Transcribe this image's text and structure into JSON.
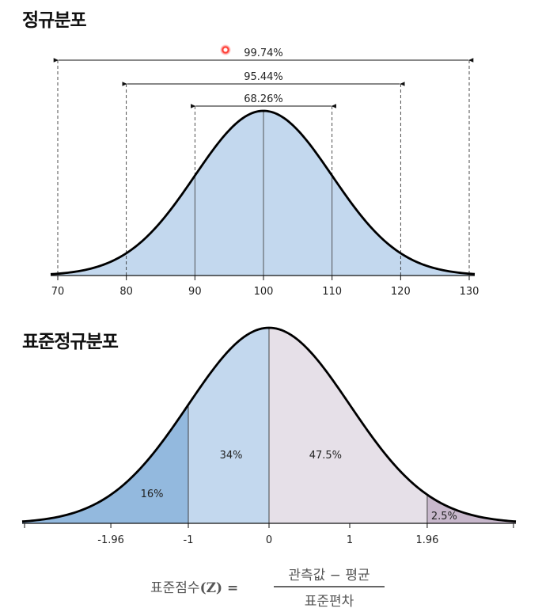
{
  "section1": {
    "title": "정규분포",
    "ranges": [
      {
        "label": "99.74%",
        "from": 70,
        "to": 130
      },
      {
        "label": "95.44%",
        "from": 80,
        "to": 120
      },
      {
        "label": "68.26%",
        "from": 90,
        "to": 110
      }
    ],
    "x_ticks": [
      "70",
      "80",
      "90",
      "100",
      "110",
      "120",
      "130"
    ],
    "fill_color": "#c3d8ee",
    "curve_color": "#000000"
  },
  "section2": {
    "title": "표준정규분포",
    "x_ticks": [
      "-1.96",
      "-1",
      "0",
      "1",
      "1.96"
    ],
    "regions": [
      {
        "label": "16%",
        "color": "#93b9de"
      },
      {
        "label": "34%",
        "color": "#c3d8ee"
      },
      {
        "label": "47.5%",
        "color": "#e6e0e8"
      },
      {
        "label": "2.5%",
        "color": "#c8b8cc"
      }
    ]
  },
  "formula": {
    "lhs": "표준점수",
    "z": "(Z) =",
    "numerator": "관측값 − 평균",
    "denominator": "표준편차"
  },
  "chart_data": [
    {
      "type": "area",
      "title": "정규분포",
      "x": [
        70,
        80,
        90,
        100,
        110,
        120,
        130
      ],
      "mean": 100,
      "sd": 10,
      "intervals": [
        {
          "range": [
            90,
            110
          ],
          "percent": 68.26
        },
        {
          "range": [
            80,
            120
          ],
          "percent": 95.44
        },
        {
          "range": [
            70,
            130
          ],
          "percent": 99.74
        }
      ]
    },
    {
      "type": "area",
      "title": "표준정규분포",
      "mean": 0,
      "sd": 1,
      "x_ticks": [
        -1.96,
        -1,
        0,
        1,
        1.96
      ],
      "regions": [
        {
          "range": [
            -999,
            -1
          ],
          "percent": 16
        },
        {
          "range": [
            -1,
            0
          ],
          "percent": 34
        },
        {
          "range": [
            0,
            1.96
          ],
          "percent": 47.5
        },
        {
          "range": [
            1.96,
            999
          ],
          "percent": 2.5
        }
      ]
    }
  ]
}
